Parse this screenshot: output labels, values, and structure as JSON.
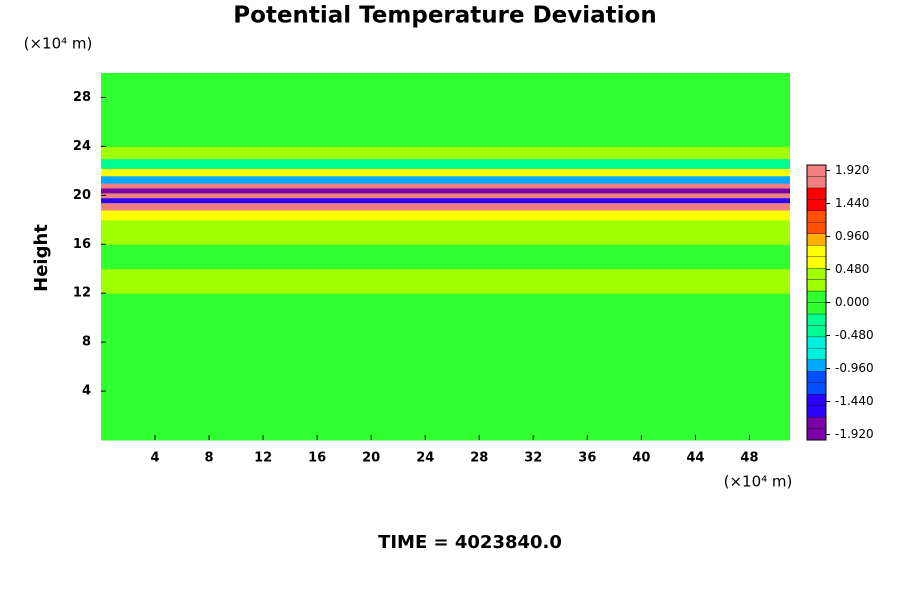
{
  "chart_data": {
    "type": "heatmap",
    "title": "Potential Temperature Deviation",
    "y_unit": "(×10⁴ m)",
    "x_unit": "(×10⁴ m)",
    "y_label": "Height",
    "footer": "TIME = 4023840.0",
    "xlim": [
      0,
      51
    ],
    "ylim": [
      0,
      30
    ],
    "xticks": [
      4,
      8,
      12,
      16,
      20,
      24,
      28,
      32,
      36,
      40,
      44,
      48
    ],
    "yticks": [
      4,
      8,
      12,
      16,
      20,
      24,
      28
    ],
    "ybins": [
      0,
      10,
      12,
      14,
      16,
      18,
      18.8,
      19.4,
      19.8,
      20.2,
      20.6,
      21,
      21.6,
      22.2,
      23,
      24,
      30
    ],
    "values": [
      0,
      0.1,
      0.2,
      0.1,
      0.2,
      0.5,
      2.0,
      -1.6,
      1.9,
      -1.9,
      1.7,
      -0.8,
      0.6,
      -0.4,
      0.2,
      0
    ],
    "clim": [
      -2,
      2
    ],
    "colormap": [
      "#7a00a8",
      "#2a00ff",
      "#0050ff",
      "#00a8ff",
      "#00f0e0",
      "#00ff90",
      "#30ff30",
      "#a0ff00",
      "#ffff00",
      "#ffb000",
      "#ff5000",
      "#ff0000",
      "#f08080"
    ],
    "colorbar_ticks": [
      {
        "value": 1.92,
        "label": "1.920"
      },
      {
        "value": 1.44,
        "label": "1.440"
      },
      {
        "value": 0.96,
        "label": "0.960"
      },
      {
        "value": 0.48,
        "label": "0.480"
      },
      {
        "value": 0,
        "label": "0.000"
      },
      {
        "value": -0.48,
        "label": "-0.480"
      },
      {
        "value": -0.96,
        "label": "-0.960"
      },
      {
        "value": -1.44,
        "label": "-1.440"
      },
      {
        "value": -1.92,
        "label": "-1.920"
      }
    ]
  }
}
